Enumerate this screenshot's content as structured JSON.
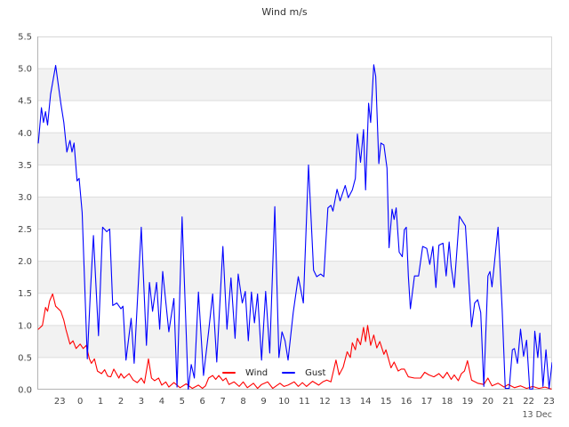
{
  "title": "Wind m/s",
  "footer": {
    "date_label": "13 Dec"
  },
  "legend": {
    "items": [
      {
        "label": "Wind",
        "color": "#ff0000"
      },
      {
        "label": "Gust",
        "color": "#0000ff"
      }
    ]
  },
  "chart_data": {
    "type": "line",
    "title": "Wind m/s",
    "xlabel": "",
    "ylabel": "",
    "ylim": [
      0,
      5.5
    ],
    "ytick_step": 0.5,
    "ytick_labels": [
      "0.0",
      "0.5",
      "1.0",
      "1.5",
      "2.0",
      "2.5",
      "3.0",
      "3.5",
      "4.0",
      "4.5",
      "5.0",
      "5.5"
    ],
    "xtick_hours": [
      -1,
      0,
      1,
      2,
      3,
      4,
      5,
      6,
      7,
      8,
      9,
      10,
      11,
      12,
      13,
      14,
      15,
      16,
      17,
      18,
      19,
      20,
      21,
      22,
      23
    ],
    "xtick_labels": [
      "23",
      "0",
      "1",
      "2",
      "3",
      "4",
      "5",
      "6",
      "7",
      "8",
      "9",
      "10",
      "11",
      "12",
      "13",
      "14",
      "15",
      "16",
      "17",
      "18",
      "19",
      "20",
      "21",
      "22",
      "23"
    ],
    "x_range_hours": [
      -2.1,
      23.15
    ],
    "x_axis_note": "hours; 0 = midnight, start of 13 Dec",
    "grid": true,
    "band_colors": [
      "#ffffff",
      "#f2f2f2"
    ],
    "gridline_color": "#dddddd",
    "border_color": "#d6d6d6",
    "spine_color": "#b3b3b3",
    "legend_position": "bottom-center-inside",
    "series": [
      {
        "name": "Wind",
        "color": "#ff0000",
        "points": [
          [
            -2.05,
            0.94
          ],
          [
            -1.85,
            1.0
          ],
          [
            -1.7,
            1.28
          ],
          [
            -1.6,
            1.22
          ],
          [
            -1.5,
            1.38
          ],
          [
            -1.35,
            1.49
          ],
          [
            -1.2,
            1.3
          ],
          [
            -0.95,
            1.22
          ],
          [
            -0.8,
            1.08
          ],
          [
            -0.7,
            0.94
          ],
          [
            -0.5,
            0.71
          ],
          [
            -0.35,
            0.76
          ],
          [
            -0.2,
            0.64
          ],
          [
            0.0,
            0.71
          ],
          [
            0.15,
            0.64
          ],
          [
            0.3,
            0.69
          ],
          [
            0.45,
            0.48
          ],
          [
            0.55,
            0.41
          ],
          [
            0.7,
            0.48
          ],
          [
            0.85,
            0.29
          ],
          [
            1.05,
            0.25
          ],
          [
            1.2,
            0.31
          ],
          [
            1.35,
            0.21
          ],
          [
            1.5,
            0.2
          ],
          [
            1.65,
            0.32
          ],
          [
            1.9,
            0.18
          ],
          [
            2.0,
            0.25
          ],
          [
            2.15,
            0.18
          ],
          [
            2.4,
            0.25
          ],
          [
            2.6,
            0.15
          ],
          [
            2.8,
            0.11
          ],
          [
            3.0,
            0.18
          ],
          [
            3.15,
            0.1
          ],
          [
            3.35,
            0.48
          ],
          [
            3.5,
            0.18
          ],
          [
            3.65,
            0.14
          ],
          [
            3.85,
            0.18
          ],
          [
            4.0,
            0.07
          ],
          [
            4.2,
            0.12
          ],
          [
            4.35,
            0.04
          ],
          [
            4.6,
            0.11
          ],
          [
            4.9,
            0.03
          ],
          [
            5.2,
            0.09
          ],
          [
            5.5,
            0.02
          ],
          [
            5.8,
            0.07
          ],
          [
            6.0,
            0.02
          ],
          [
            6.15,
            0.06
          ],
          [
            6.3,
            0.18
          ],
          [
            6.5,
            0.22
          ],
          [
            6.65,
            0.16
          ],
          [
            6.8,
            0.22
          ],
          [
            7.0,
            0.14
          ],
          [
            7.15,
            0.18
          ],
          [
            7.3,
            0.08
          ],
          [
            7.55,
            0.12
          ],
          [
            7.8,
            0.05
          ],
          [
            8.0,
            0.12
          ],
          [
            8.2,
            0.03
          ],
          [
            8.5,
            0.1
          ],
          [
            8.7,
            0.02
          ],
          [
            8.9,
            0.08
          ],
          [
            9.2,
            0.12
          ],
          [
            9.45,
            0.02
          ],
          [
            9.8,
            0.1
          ],
          [
            10.0,
            0.05
          ],
          [
            10.2,
            0.07
          ],
          [
            10.5,
            0.12
          ],
          [
            10.7,
            0.05
          ],
          [
            10.9,
            0.11
          ],
          [
            11.1,
            0.05
          ],
          [
            11.4,
            0.13
          ],
          [
            11.7,
            0.07
          ],
          [
            11.9,
            0.12
          ],
          [
            12.1,
            0.15
          ],
          [
            12.3,
            0.12
          ],
          [
            12.55,
            0.46
          ],
          [
            12.7,
            0.23
          ],
          [
            12.9,
            0.35
          ],
          [
            13.1,
            0.59
          ],
          [
            13.25,
            0.5
          ],
          [
            13.35,
            0.73
          ],
          [
            13.5,
            0.62
          ],
          [
            13.6,
            0.8
          ],
          [
            13.75,
            0.7
          ],
          [
            13.9,
            0.97
          ],
          [
            14.0,
            0.75
          ],
          [
            14.1,
            1.0
          ],
          [
            14.25,
            0.69
          ],
          [
            14.4,
            0.85
          ],
          [
            14.55,
            0.65
          ],
          [
            14.7,
            0.75
          ],
          [
            14.9,
            0.55
          ],
          [
            15.0,
            0.62
          ],
          [
            15.25,
            0.34
          ],
          [
            15.4,
            0.43
          ],
          [
            15.6,
            0.29
          ],
          [
            15.75,
            0.32
          ],
          [
            15.9,
            0.32
          ],
          [
            16.1,
            0.2
          ],
          [
            16.4,
            0.18
          ],
          [
            16.7,
            0.18
          ],
          [
            16.9,
            0.27
          ],
          [
            17.1,
            0.23
          ],
          [
            17.35,
            0.2
          ],
          [
            17.6,
            0.25
          ],
          [
            17.8,
            0.18
          ],
          [
            18.0,
            0.27
          ],
          [
            18.2,
            0.16
          ],
          [
            18.35,
            0.23
          ],
          [
            18.55,
            0.14
          ],
          [
            18.7,
            0.25
          ],
          [
            18.85,
            0.29
          ],
          [
            19.0,
            0.45
          ],
          [
            19.2,
            0.15
          ],
          [
            19.5,
            0.1
          ],
          [
            19.8,
            0.08
          ],
          [
            20.0,
            0.18
          ],
          [
            20.2,
            0.06
          ],
          [
            20.5,
            0.1
          ],
          [
            20.8,
            0.04
          ],
          [
            21.0,
            0.08
          ],
          [
            21.3,
            0.03
          ],
          [
            21.6,
            0.06
          ],
          [
            21.9,
            0.02
          ],
          [
            22.2,
            0.05
          ],
          [
            22.5,
            0.02
          ],
          [
            22.8,
            0.04
          ],
          [
            23.1,
            0.01
          ]
        ]
      },
      {
        "name": "Gust",
        "color": "#0000ff",
        "points": [
          [
            -2.05,
            3.84
          ],
          [
            -1.9,
            4.39
          ],
          [
            -1.8,
            4.16
          ],
          [
            -1.7,
            4.33
          ],
          [
            -1.6,
            4.12
          ],
          [
            -1.45,
            4.6
          ],
          [
            -1.2,
            5.05
          ],
          [
            -0.95,
            4.46
          ],
          [
            -0.8,
            4.16
          ],
          [
            -0.65,
            3.7
          ],
          [
            -0.5,
            3.88
          ],
          [
            -0.4,
            3.7
          ],
          [
            -0.3,
            3.84
          ],
          [
            -0.15,
            3.25
          ],
          [
            -0.05,
            3.29
          ],
          [
            0.1,
            2.76
          ],
          [
            0.35,
            0.48
          ],
          [
            0.5,
            1.5
          ],
          [
            0.65,
            2.4
          ],
          [
            0.9,
            0.84
          ],
          [
            1.1,
            2.53
          ],
          [
            1.3,
            2.46
          ],
          [
            1.45,
            2.5
          ],
          [
            1.6,
            1.31
          ],
          [
            1.8,
            1.35
          ],
          [
            2.0,
            1.26
          ],
          [
            2.1,
            1.3
          ],
          [
            2.25,
            0.46
          ],
          [
            2.5,
            1.11
          ],
          [
            2.65,
            0.41
          ],
          [
            3.0,
            2.53
          ],
          [
            3.25,
            0.69
          ],
          [
            3.4,
            1.67
          ],
          [
            3.55,
            1.22
          ],
          [
            3.75,
            1.67
          ],
          [
            3.9,
            0.94
          ],
          [
            4.05,
            1.84
          ],
          [
            4.35,
            0.9
          ],
          [
            4.6,
            1.42
          ],
          [
            4.75,
            0.04
          ],
          [
            5.0,
            2.69
          ],
          [
            5.3,
            0.0
          ],
          [
            5.45,
            0.39
          ],
          [
            5.6,
            0.18
          ],
          [
            5.8,
            1.52
          ],
          [
            6.05,
            0.22
          ],
          [
            6.3,
            0.9
          ],
          [
            6.5,
            1.49
          ],
          [
            6.7,
            0.43
          ],
          [
            7.0,
            2.23
          ],
          [
            7.2,
            0.94
          ],
          [
            7.4,
            1.74
          ],
          [
            7.6,
            0.8
          ],
          [
            7.75,
            1.8
          ],
          [
            7.95,
            1.35
          ],
          [
            8.1,
            1.53
          ],
          [
            8.25,
            0.76
          ],
          [
            8.4,
            1.52
          ],
          [
            8.55,
            1.04
          ],
          [
            8.7,
            1.49
          ],
          [
            8.9,
            0.46
          ],
          [
            9.1,
            1.53
          ],
          [
            9.3,
            0.57
          ],
          [
            9.55,
            2.85
          ],
          [
            9.75,
            0.5
          ],
          [
            9.9,
            0.9
          ],
          [
            10.05,
            0.76
          ],
          [
            10.2,
            0.46
          ],
          [
            10.45,
            1.2
          ],
          [
            10.7,
            1.76
          ],
          [
            10.95,
            1.35
          ],
          [
            11.2,
            3.5
          ],
          [
            11.45,
            1.86
          ],
          [
            11.6,
            1.76
          ],
          [
            11.8,
            1.8
          ],
          [
            11.95,
            1.76
          ],
          [
            12.15,
            2.83
          ],
          [
            12.3,
            2.87
          ],
          [
            12.4,
            2.78
          ],
          [
            12.6,
            3.12
          ],
          [
            12.75,
            2.94
          ],
          [
            13.0,
            3.18
          ],
          [
            13.15,
            2.99
          ],
          [
            13.35,
            3.11
          ],
          [
            13.5,
            3.29
          ],
          [
            13.6,
            3.98
          ],
          [
            13.75,
            3.54
          ],
          [
            13.9,
            4.05
          ],
          [
            14.0,
            3.11
          ],
          [
            14.15,
            4.46
          ],
          [
            14.25,
            4.16
          ],
          [
            14.4,
            5.06
          ],
          [
            14.5,
            4.88
          ],
          [
            14.65,
            3.52
          ],
          [
            14.75,
            3.84
          ],
          [
            14.9,
            3.81
          ],
          [
            15.05,
            3.45
          ],
          [
            15.15,
            2.21
          ],
          [
            15.3,
            2.81
          ],
          [
            15.4,
            2.65
          ],
          [
            15.5,
            2.83
          ],
          [
            15.65,
            2.14
          ],
          [
            15.8,
            2.07
          ],
          [
            15.9,
            2.49
          ],
          [
            16.0,
            2.53
          ],
          [
            16.1,
            1.77
          ],
          [
            16.2,
            1.26
          ],
          [
            16.4,
            1.77
          ],
          [
            16.6,
            1.77
          ],
          [
            16.8,
            2.23
          ],
          [
            17.0,
            2.2
          ],
          [
            17.15,
            1.95
          ],
          [
            17.3,
            2.23
          ],
          [
            17.45,
            1.59
          ],
          [
            17.6,
            2.25
          ],
          [
            17.8,
            2.28
          ],
          [
            17.95,
            1.77
          ],
          [
            18.1,
            2.3
          ],
          [
            18.2,
            1.91
          ],
          [
            18.35,
            1.59
          ],
          [
            18.6,
            2.7
          ],
          [
            18.9,
            2.55
          ],
          [
            19.2,
            0.98
          ],
          [
            19.35,
            1.35
          ],
          [
            19.5,
            1.4
          ],
          [
            19.65,
            1.2
          ],
          [
            19.8,
            0.05
          ],
          [
            20.0,
            1.77
          ],
          [
            20.1,
            1.84
          ],
          [
            20.2,
            1.6
          ],
          [
            20.5,
            2.53
          ],
          [
            20.7,
            1.26
          ],
          [
            20.85,
            0.02
          ],
          [
            21.05,
            0.02
          ],
          [
            21.2,
            0.62
          ],
          [
            21.3,
            0.64
          ],
          [
            21.45,
            0.41
          ],
          [
            21.6,
            0.94
          ],
          [
            21.75,
            0.52
          ],
          [
            21.9,
            0.77
          ],
          [
            22.05,
            0.01
          ],
          [
            22.2,
            0.01
          ],
          [
            22.3,
            0.91
          ],
          [
            22.45,
            0.5
          ],
          [
            22.55,
            0.88
          ],
          [
            22.7,
            0.05
          ],
          [
            22.85,
            0.62
          ],
          [
            23.0,
            0.02
          ],
          [
            23.15,
            0.42
          ]
        ]
      }
    ]
  }
}
